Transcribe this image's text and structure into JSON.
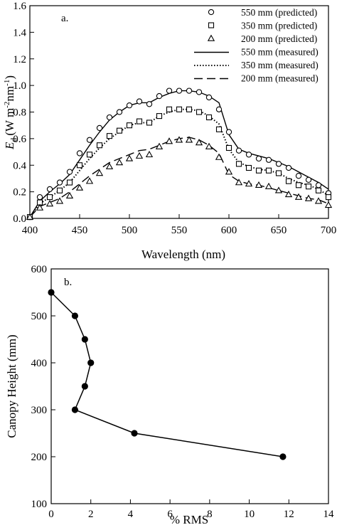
{
  "chart_data": [
    {
      "type": "line",
      "panel_label": "a.",
      "xlabel": "Wavelength (nm)",
      "ylabel_main": "E",
      "ylabel_sub": "d",
      "ylabel_units": "(W m",
      "ylabel_exp1": "-2",
      "ylabel_mid": "nm",
      "ylabel_exp2": "-1",
      "ylabel_close": ")",
      "xlim": [
        400,
        700
      ],
      "ylim": [
        0.0,
        1.6
      ],
      "xticks": [
        400,
        450,
        500,
        550,
        600,
        650,
        700
      ],
      "xtick_labels": [
        "400",
        "450",
        "500",
        "550",
        "600",
        "650",
        "700"
      ],
      "yticks": [
        0.0,
        0.2,
        0.4,
        0.6,
        0.8,
        1.0,
        1.2,
        1.4,
        1.6
      ],
      "ytick_labels": [
        "0.0",
        "0.2",
        "0.4",
        "0.6",
        "0.8",
        "1.0",
        "1.2",
        "1.4",
        "1.6"
      ],
      "legend_position": "top-right",
      "x": [
        400,
        410,
        420,
        430,
        440,
        450,
        460,
        470,
        480,
        490,
        500,
        510,
        520,
        530,
        540,
        550,
        560,
        570,
        580,
        590,
        600,
        610,
        620,
        630,
        640,
        650,
        660,
        670,
        680,
        690,
        700
      ],
      "series": [
        {
          "name": "550 mm (predicted)",
          "style": "circle",
          "values": [
            0.01,
            0.16,
            0.22,
            0.27,
            0.35,
            0.49,
            0.59,
            0.68,
            0.76,
            0.8,
            0.85,
            0.88,
            0.86,
            0.92,
            0.96,
            0.96,
            0.96,
            0.95,
            0.91,
            0.82,
            0.65,
            0.51,
            0.48,
            0.45,
            0.44,
            0.41,
            0.38,
            0.32,
            0.29,
            0.25,
            0.19
          ]
        },
        {
          "name": "350 mm (predicted)",
          "style": "square",
          "values": [
            0.01,
            0.12,
            0.16,
            0.21,
            0.27,
            0.4,
            0.48,
            0.55,
            0.62,
            0.66,
            0.7,
            0.73,
            0.72,
            0.77,
            0.82,
            0.82,
            0.82,
            0.8,
            0.76,
            0.67,
            0.53,
            0.41,
            0.38,
            0.36,
            0.36,
            0.34,
            0.28,
            0.25,
            0.24,
            0.21,
            0.16
          ]
        },
        {
          "name": "200 mm (predicted)",
          "style": "triangle",
          "values": [
            0.01,
            0.08,
            0.11,
            0.13,
            0.17,
            0.23,
            0.28,
            0.34,
            0.39,
            0.42,
            0.45,
            0.47,
            0.48,
            0.54,
            0.58,
            0.59,
            0.59,
            0.57,
            0.54,
            0.46,
            0.35,
            0.27,
            0.26,
            0.25,
            0.24,
            0.21,
            0.18,
            0.16,
            0.15,
            0.13,
            0.1
          ]
        },
        {
          "name": "550 mm (measured)",
          "style": "solid",
          "values": [
            0.01,
            0.13,
            0.2,
            0.26,
            0.33,
            0.44,
            0.55,
            0.65,
            0.74,
            0.8,
            0.85,
            0.87,
            0.87,
            0.91,
            0.94,
            0.96,
            0.96,
            0.95,
            0.92,
            0.87,
            0.63,
            0.52,
            0.49,
            0.47,
            0.45,
            0.42,
            0.39,
            0.35,
            0.31,
            0.27,
            0.22
          ]
        },
        {
          "name": "350 mm (measured)",
          "style": "dotted",
          "values": [
            0.01,
            0.11,
            0.16,
            0.21,
            0.27,
            0.36,
            0.45,
            0.53,
            0.6,
            0.65,
            0.7,
            0.72,
            0.72,
            0.77,
            0.8,
            0.82,
            0.82,
            0.81,
            0.77,
            0.71,
            0.52,
            0.42,
            0.39,
            0.37,
            0.36,
            0.34,
            0.3,
            0.27,
            0.25,
            0.22,
            0.17
          ]
        },
        {
          "name": "200 mm (measured)",
          "style": "dashed",
          "values": [
            0.01,
            0.09,
            0.12,
            0.15,
            0.2,
            0.26,
            0.32,
            0.37,
            0.42,
            0.45,
            0.48,
            0.51,
            0.52,
            0.55,
            0.58,
            0.6,
            0.61,
            0.59,
            0.55,
            0.49,
            0.33,
            0.28,
            0.26,
            0.25,
            0.23,
            0.21,
            0.19,
            0.17,
            0.15,
            0.14,
            0.11
          ]
        }
      ]
    },
    {
      "type": "line",
      "panel_label": "b.",
      "xlabel": "% RMS",
      "ylabel": "Canopy Height (mm)",
      "xlim": [
        0,
        14
      ],
      "ylim": [
        100,
        600
      ],
      "xticks": [
        0,
        2,
        4,
        6,
        8,
        10,
        12,
        14
      ],
      "xtick_labels": [
        "0",
        "2",
        "4",
        "6",
        "8",
        "10",
        "12",
        "14"
      ],
      "yticks": [
        100,
        200,
        300,
        400,
        500,
        600
      ],
      "ytick_labels": [
        "100",
        "200",
        "300",
        "400",
        "500",
        "600"
      ],
      "points": [
        {
          "x": 0.0,
          "y": 550
        },
        {
          "x": 1.2,
          "y": 500
        },
        {
          "x": 1.7,
          "y": 450
        },
        {
          "x": 2.0,
          "y": 400
        },
        {
          "x": 1.7,
          "y": 350
        },
        {
          "x": 1.2,
          "y": 300
        },
        {
          "x": 4.2,
          "y": 250
        },
        {
          "x": 11.7,
          "y": 200
        }
      ]
    }
  ]
}
